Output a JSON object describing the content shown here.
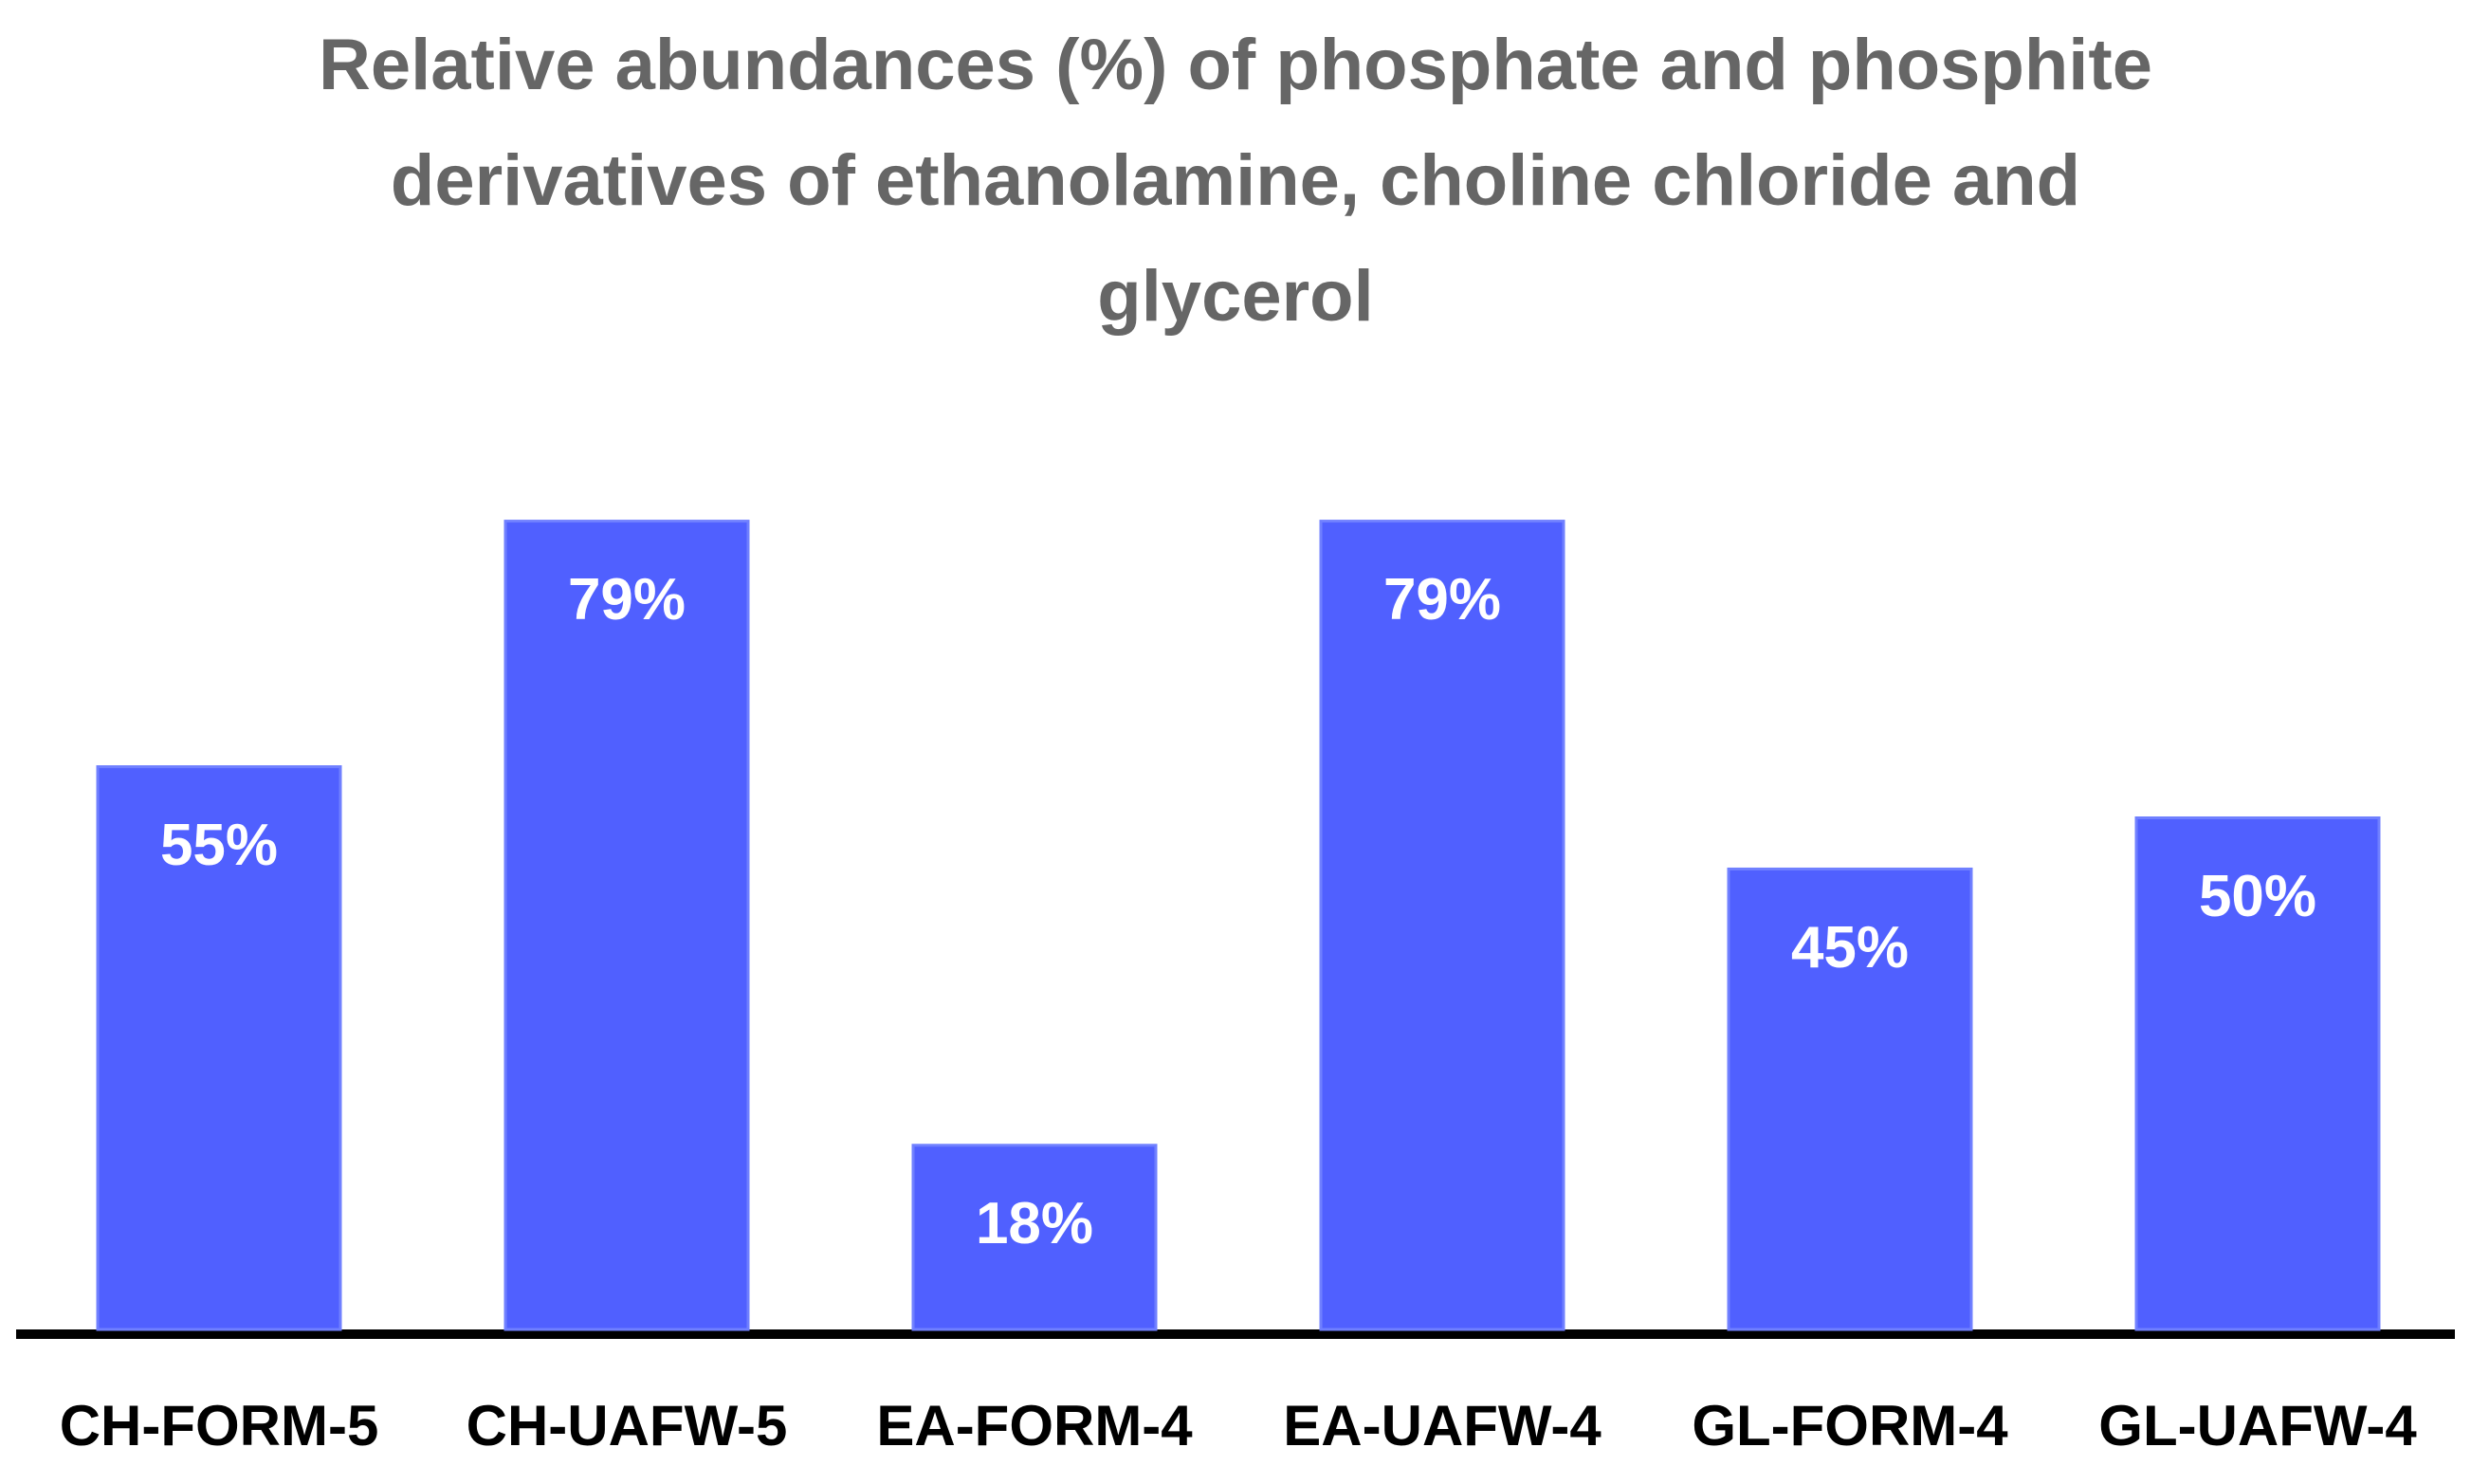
{
  "chart_data": {
    "type": "bar",
    "title": "Relative abundances (%) of phosphate and phosphite derivatives of ethanolamine, choline chloride and glycerol",
    "categories": [
      "CH-FORM-5",
      "CH-UAFW-5",
      "EA-FORM-4",
      "EA-UAFW-4",
      "GL-FORM-4",
      "GL-UAFW-4"
    ],
    "values": [
      55,
      79,
      18,
      79,
      45,
      50
    ],
    "value_labels": [
      "55%",
      "79%",
      "18%",
      "79%",
      "45%",
      "50%"
    ],
    "color": "#5060ff"
  }
}
